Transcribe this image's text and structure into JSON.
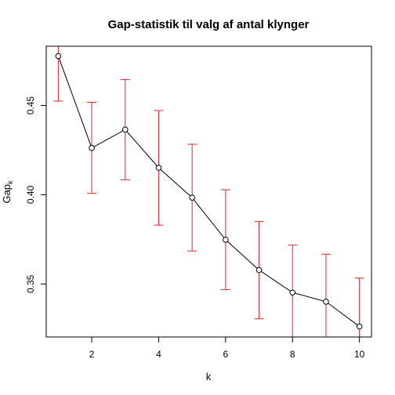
{
  "chart_data": {
    "type": "line",
    "title": "Gap-statistik til valg af antal klynger",
    "xlabel": "k",
    "ylabel_main": "Gap",
    "ylabel_sub": "k",
    "x": [
      1,
      2,
      3,
      4,
      5,
      6,
      7,
      8,
      9,
      10
    ],
    "series": [
      {
        "values": [
          0.4777,
          0.4262,
          0.4365,
          0.4151,
          0.3984,
          0.3748,
          0.3578,
          0.3452,
          0.3401,
          0.3262
        ],
        "err_low": [
          0.4525,
          0.4008,
          0.4084,
          0.383,
          0.3685,
          0.3468,
          0.3305,
          0.3178,
          0.317,
          0.305
        ],
        "err_high": [
          0.499,
          0.4518,
          0.4645,
          0.4472,
          0.4283,
          0.4028,
          0.385,
          0.3718,
          0.3667,
          0.3533
        ],
        "line_color": "#000000",
        "errorbar_color": "#d62728"
      }
    ],
    "xlim": [
      0.64,
      10.36
    ],
    "ylim": [
      0.3203,
      0.4832
    ],
    "xticks": [
      2,
      4,
      6,
      8,
      10
    ],
    "yticks": [
      0.35,
      0.4,
      0.45
    ],
    "xtick_labels": [
      "2",
      "4",
      "6",
      "8",
      "10"
    ],
    "ytick_labels": [
      "0.35",
      "0.40",
      "0.45"
    ],
    "grid": false,
    "legend": "none"
  }
}
